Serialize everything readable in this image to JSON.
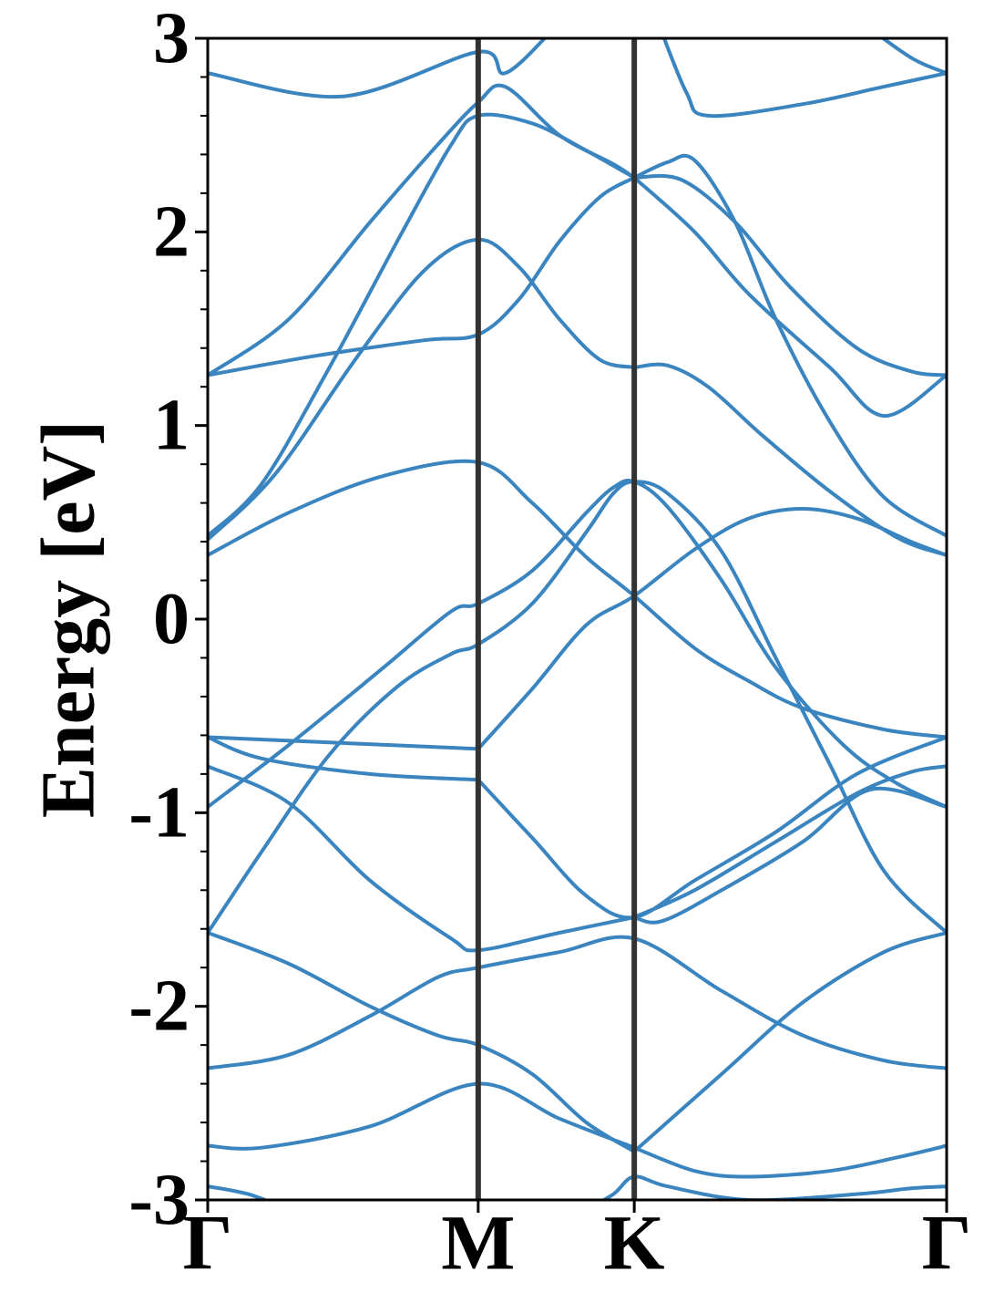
{
  "chart_data": {
    "type": "line",
    "title": "",
    "xlabel": "",
    "ylabel": "Energy [eV]",
    "ylim": [
      -3,
      3
    ],
    "y_ticks": [
      "-3",
      "-2",
      "-1",
      "0",
      "1",
      "2",
      "3"
    ],
    "k_points": [
      {
        "label": "Γ",
        "x": 0.0
      },
      {
        "label": "M",
        "x": 1.0
      },
      {
        "label": "K",
        "x": 1.577
      },
      {
        "label": "Γ",
        "x": 2.732
      }
    ],
    "grid": false,
    "legend": "none",
    "line_color": "#3a85c0",
    "divider_color": "#333333",
    "series": [
      {
        "values": [
          [
            0,
            2.82
          ],
          [
            0.5,
            2.7
          ],
          [
            1.0,
            2.93
          ],
          [
            1.1,
            2.82
          ],
          [
            1.28,
            3.05
          ]
        ]
      },
      {
        "values": [
          [
            1.66,
            3.1
          ],
          [
            1.77,
            2.72
          ],
          [
            1.85,
            2.6
          ],
          [
            2.2,
            2.66
          ],
          [
            2.5,
            2.75
          ],
          [
            2.732,
            2.82
          ]
        ]
      },
      {
        "values": [
          [
            2.4,
            3.1
          ],
          [
            2.6,
            2.9
          ],
          [
            2.732,
            2.82
          ]
        ]
      },
      {
        "values": [
          [
            0,
            1.26
          ],
          [
            0.3,
            1.55
          ],
          [
            0.6,
            2.05
          ],
          [
            0.85,
            2.45
          ],
          [
            1.0,
            2.67
          ],
          [
            1.1,
            2.75
          ],
          [
            1.3,
            2.5
          ],
          [
            1.5,
            2.35
          ],
          [
            1.577,
            2.28
          ]
        ]
      },
      {
        "values": [
          [
            0,
            1.26
          ],
          [
            0.4,
            1.36
          ],
          [
            0.8,
            1.44
          ],
          [
            1.0,
            1.47
          ],
          [
            1.15,
            1.65
          ],
          [
            1.3,
            1.95
          ],
          [
            1.45,
            2.18
          ],
          [
            1.577,
            2.28
          ]
        ]
      },
      {
        "values": [
          [
            0,
            0.43
          ],
          [
            0.2,
            0.7
          ],
          [
            0.45,
            1.3
          ],
          [
            0.7,
            1.95
          ],
          [
            0.9,
            2.45
          ],
          [
            1.0,
            2.6
          ],
          [
            1.2,
            2.56
          ],
          [
            1.4,
            2.42
          ],
          [
            1.577,
            2.28
          ]
        ]
      },
      {
        "values": [
          [
            0,
            0.41
          ],
          [
            0.25,
            0.75
          ],
          [
            0.55,
            1.35
          ],
          [
            0.8,
            1.8
          ],
          [
            1.0,
            1.96
          ],
          [
            1.15,
            1.82
          ],
          [
            1.3,
            1.55
          ],
          [
            1.45,
            1.34
          ],
          [
            1.577,
            1.3
          ]
        ]
      },
      {
        "values": [
          [
            1.577,
            2.28
          ],
          [
            1.7,
            2.36
          ],
          [
            1.8,
            2.37
          ],
          [
            1.95,
            2.05
          ],
          [
            2.1,
            1.55
          ],
          [
            2.3,
            1.02
          ],
          [
            2.5,
            0.63
          ],
          [
            2.732,
            0.43
          ]
        ]
      },
      {
        "values": [
          [
            1.577,
            2.28
          ],
          [
            1.75,
            2.27
          ],
          [
            1.95,
            2.05
          ],
          [
            2.15,
            1.72
          ],
          [
            2.4,
            1.4
          ],
          [
            2.6,
            1.28
          ],
          [
            2.732,
            1.26
          ]
        ]
      },
      {
        "values": [
          [
            1.577,
            2.28
          ],
          [
            1.8,
            2.0
          ],
          [
            2.0,
            1.68
          ],
          [
            2.3,
            1.3
          ],
          [
            2.5,
            1.05
          ],
          [
            2.732,
            1.26
          ]
        ]
      },
      {
        "values": [
          [
            1.577,
            1.3
          ],
          [
            1.7,
            1.31
          ],
          [
            1.85,
            1.2
          ],
          [
            2.05,
            0.95
          ],
          [
            2.3,
            0.66
          ],
          [
            2.55,
            0.42
          ],
          [
            2.732,
            0.33
          ]
        ]
      },
      {
        "values": [
          [
            0,
            0.33
          ],
          [
            0.3,
            0.55
          ],
          [
            0.65,
            0.74
          ],
          [
            1.0,
            0.81
          ],
          [
            1.2,
            0.6
          ],
          [
            1.4,
            0.32
          ],
          [
            1.577,
            0.12
          ],
          [
            1.8,
            -0.15
          ],
          [
            2.0,
            -0.32
          ],
          [
            2.2,
            -0.46
          ],
          [
            2.5,
            -0.57
          ],
          [
            2.732,
            -0.61
          ]
        ]
      },
      {
        "values": [
          [
            0,
            -0.97
          ],
          [
            0.3,
            -0.65
          ],
          [
            0.65,
            -0.25
          ],
          [
            0.9,
            0.04
          ],
          [
            1.0,
            0.08
          ],
          [
            1.2,
            0.25
          ],
          [
            1.4,
            0.55
          ],
          [
            1.5,
            0.68
          ],
          [
            1.577,
            0.71
          ],
          [
            1.7,
            0.58
          ],
          [
            1.9,
            0.2
          ],
          [
            2.1,
            -0.25
          ],
          [
            2.35,
            -0.65
          ],
          [
            2.55,
            -0.85
          ],
          [
            2.732,
            -0.97
          ]
        ]
      },
      {
        "values": [
          [
            0,
            -1.62
          ],
          [
            0.2,
            -1.2
          ],
          [
            0.45,
            -0.7
          ],
          [
            0.7,
            -0.35
          ],
          [
            0.9,
            -0.18
          ],
          [
            1.0,
            -0.13
          ],
          [
            1.2,
            0.08
          ],
          [
            1.4,
            0.45
          ],
          [
            1.5,
            0.65
          ],
          [
            1.577,
            0.71
          ],
          [
            1.7,
            0.65
          ],
          [
            1.9,
            0.35
          ],
          [
            2.1,
            -0.2
          ],
          [
            2.3,
            -0.75
          ],
          [
            2.5,
            -1.3
          ],
          [
            2.732,
            -1.62
          ]
        ]
      },
      {
        "values": [
          [
            1.0,
            -0.67
          ],
          [
            1.2,
            -0.36
          ],
          [
            1.4,
            -0.03
          ],
          [
            1.577,
            0.12
          ],
          [
            1.8,
            0.36
          ],
          [
            2.0,
            0.52
          ],
          [
            2.2,
            0.57
          ],
          [
            2.4,
            0.52
          ],
          [
            2.6,
            0.4
          ],
          [
            2.732,
            0.33
          ]
        ]
      },
      {
        "values": [
          [
            0,
            -0.61
          ],
          [
            0.5,
            -0.64
          ],
          [
            1.0,
            -0.67
          ]
        ]
      },
      {
        "values": [
          [
            0,
            -0.61
          ],
          [
            0.2,
            -0.72
          ],
          [
            0.6,
            -0.8
          ],
          [
            1.0,
            -0.83
          ]
        ]
      },
      {
        "values": [
          [
            0,
            -0.76
          ],
          [
            0.3,
            -0.95
          ],
          [
            0.6,
            -1.35
          ],
          [
            0.9,
            -1.65
          ],
          [
            1.0,
            -1.71
          ],
          [
            1.3,
            -1.62
          ],
          [
            1.577,
            -1.54
          ]
        ]
      },
      {
        "values": [
          [
            1.0,
            -0.83
          ],
          [
            1.2,
            -1.13
          ],
          [
            1.4,
            -1.43
          ],
          [
            1.577,
            -1.54
          ],
          [
            1.8,
            -1.35
          ],
          [
            2.1,
            -1.1
          ],
          [
            2.4,
            -0.8
          ],
          [
            2.732,
            -0.61
          ]
        ]
      },
      {
        "values": [
          [
            1.577,
            -1.54
          ],
          [
            1.8,
            -1.4
          ],
          [
            2.1,
            -1.15
          ],
          [
            2.4,
            -0.9
          ],
          [
            2.6,
            -0.79
          ],
          [
            2.732,
            -0.76
          ]
        ]
      },
      {
        "values": [
          [
            1.577,
            -1.54
          ],
          [
            1.68,
            -1.56
          ],
          [
            1.9,
            -1.4
          ],
          [
            2.2,
            -1.15
          ],
          [
            2.45,
            -0.88
          ],
          [
            2.732,
            -0.97
          ]
        ]
      },
      {
        "values": [
          [
            0,
            -1.62
          ],
          [
            0.3,
            -1.78
          ],
          [
            0.6,
            -2.0
          ],
          [
            0.85,
            -2.15
          ],
          [
            1.0,
            -2.2
          ],
          [
            1.2,
            -2.35
          ],
          [
            1.4,
            -2.6
          ],
          [
            1.577,
            -2.75
          ]
        ]
      },
      {
        "values": [
          [
            0,
            -2.32
          ],
          [
            0.3,
            -2.25
          ],
          [
            0.6,
            -2.05
          ],
          [
            0.85,
            -1.85
          ],
          [
            1.0,
            -1.8
          ],
          [
            1.3,
            -1.72
          ],
          [
            1.577,
            -1.65
          ],
          [
            1.9,
            -1.92
          ],
          [
            2.2,
            -2.15
          ],
          [
            2.5,
            -2.28
          ],
          [
            2.732,
            -2.32
          ]
        ]
      },
      {
        "values": [
          [
            1.577,
            -2.75
          ],
          [
            1.9,
            -2.35
          ],
          [
            2.2,
            -1.98
          ],
          [
            2.5,
            -1.72
          ],
          [
            2.732,
            -1.62
          ]
        ]
      },
      {
        "values": [
          [
            0,
            -2.72
          ],
          [
            0.2,
            -2.73
          ],
          [
            0.6,
            -2.62
          ],
          [
            1.0,
            -2.4
          ],
          [
            1.3,
            -2.58
          ],
          [
            1.577,
            -2.73
          ]
        ]
      },
      {
        "values": [
          [
            1.577,
            -2.73
          ],
          [
            1.8,
            -2.85
          ],
          [
            2.0,
            -2.88
          ],
          [
            2.3,
            -2.85
          ],
          [
            2.55,
            -2.78
          ],
          [
            2.732,
            -2.72
          ]
        ]
      },
      {
        "values": [
          [
            0,
            -2.93
          ],
          [
            0.15,
            -2.97
          ],
          [
            0.3,
            -3.05
          ]
        ]
      },
      {
        "values": [
          [
            1.4,
            -3.05
          ],
          [
            1.5,
            -2.97
          ],
          [
            1.577,
            -2.88
          ],
          [
            1.7,
            -2.93
          ],
          [
            2.0,
            -3.0
          ],
          [
            2.4,
            -2.97
          ],
          [
            2.6,
            -2.94
          ],
          [
            2.732,
            -2.93
          ]
        ]
      }
    ]
  }
}
